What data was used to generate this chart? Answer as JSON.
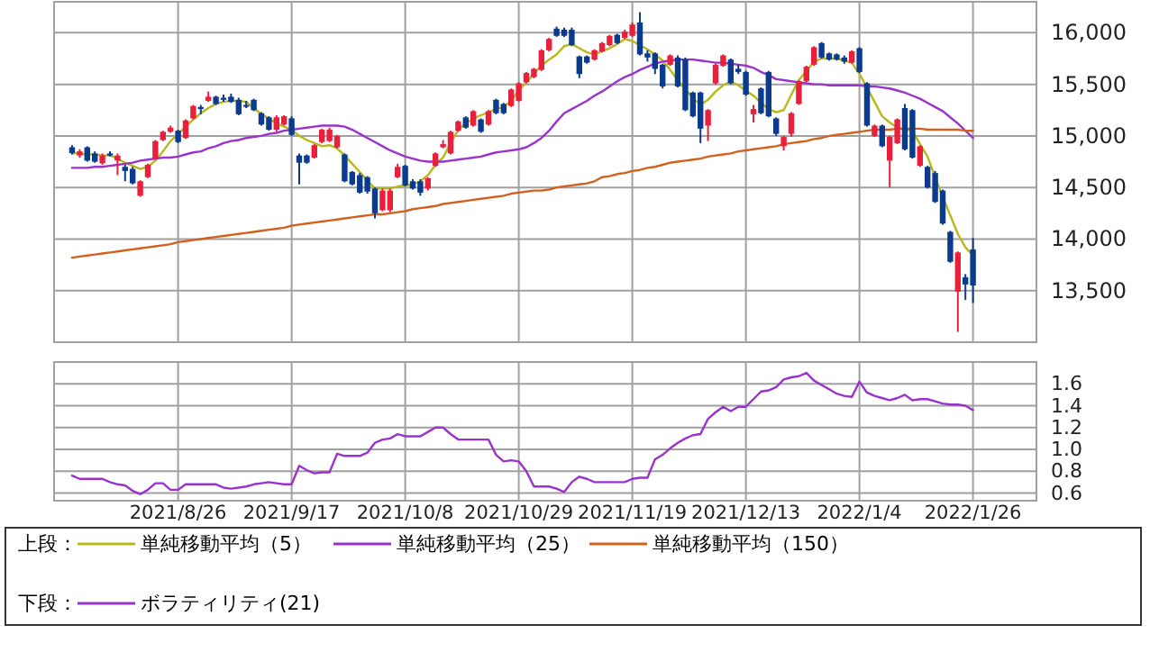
{
  "chart_data": [
    {
      "type": "candlestick",
      "legend_title": "上段：",
      "legend": "bottom",
      "grid": true,
      "tick_labels": "y",
      "categories": [
        null,
        null,
        null,
        null,
        null,
        null,
        null,
        null,
        null,
        null,
        null,
        null,
        null,
        null,
        "2021/8/26",
        null,
        null,
        null,
        null,
        null,
        null,
        null,
        null,
        null,
        null,
        null,
        null,
        null,
        null,
        "2021/9/17",
        null,
        null,
        null,
        null,
        null,
        null,
        null,
        null,
        null,
        null,
        null,
        null,
        null,
        null,
        "2021/10/8",
        null,
        null,
        null,
        null,
        null,
        null,
        null,
        null,
        null,
        null,
        null,
        null,
        null,
        null,
        "2021/10/29",
        null,
        null,
        null,
        null,
        null,
        null,
        null,
        null,
        null,
        null,
        null,
        null,
        null,
        null,
        "2021/11/19",
        null,
        null,
        null,
        null,
        null,
        null,
        null,
        null,
        null,
        null,
        null,
        null,
        null,
        null,
        "2021/12/13",
        null,
        null,
        null,
        null,
        null,
        null,
        null,
        null,
        null,
        null,
        null,
        null,
        null,
        null,
        "2022/1/4",
        null,
        null,
        null,
        null,
        null,
        null,
        null,
        null,
        null,
        null,
        null,
        null,
        null,
        null,
        "2022/1/26"
      ],
      "ohlc": [
        [
          14890,
          14910,
          14820,
          14833
        ],
        [
          14810,
          14870,
          14790,
          14850
        ],
        [
          14890,
          14900,
          14750,
          14760
        ],
        [
          14830,
          14850,
          14740,
          14750
        ],
        [
          14735,
          14830,
          14720,
          14810
        ],
        [
          14830,
          14850,
          14800,
          14810
        ],
        [
          14760,
          14830,
          14620,
          14810
        ],
        [
          14700,
          14720,
          14560,
          14660
        ],
        [
          14680,
          14700,
          14530,
          14540
        ],
        [
          14420,
          14570,
          14410,
          14560
        ],
        [
          14600,
          14730,
          14590,
          14720
        ],
        [
          14780,
          14960,
          14770,
          14950
        ],
        [
          14960,
          15050,
          14950,
          15040
        ],
        [
          15040,
          15100,
          15030,
          15080
        ],
        [
          15050,
          15060,
          14930,
          14940
        ],
        [
          14980,
          15160,
          14970,
          15150
        ],
        [
          15170,
          15300,
          15160,
          15290
        ],
        [
          15280,
          15300,
          15210,
          15260
        ],
        [
          15340,
          15430,
          15330,
          15380
        ],
        [
          15380,
          15390,
          15300,
          15310
        ],
        [
          15370,
          15400,
          15330,
          15350
        ],
        [
          15380,
          15410,
          15320,
          15330
        ],
        [
          15350,
          15370,
          15200,
          15210
        ],
        [
          15300,
          15340,
          15270,
          15290
        ],
        [
          15350,
          15360,
          15240,
          15250
        ],
        [
          15220,
          15230,
          15100,
          15110
        ],
        [
          15180,
          15190,
          15050,
          15060
        ],
        [
          15060,
          15200,
          15040,
          15180
        ],
        [
          15110,
          15200,
          15100,
          15190
        ],
        [
          15170,
          15190,
          15000,
          15010
        ],
        [
          14810,
          14830,
          14530,
          14740
        ],
        [
          14810,
          14820,
          14730,
          14740
        ],
        [
          14790,
          14920,
          14780,
          14910
        ],
        [
          14940,
          15070,
          14930,
          15060
        ],
        [
          14950,
          15080,
          14940,
          15060
        ],
        [
          14890,
          15010,
          14880,
          15000
        ],
        [
          14820,
          14830,
          14550,
          14560
        ],
        [
          14650,
          14660,
          14520,
          14530
        ],
        [
          14620,
          14640,
          14440,
          14450
        ],
        [
          14600,
          14610,
          14440,
          14460
        ],
        [
          14490,
          14500,
          14200,
          14250
        ],
        [
          14280,
          14490,
          14270,
          14470
        ],
        [
          14280,
          14490,
          14260,
          14470
        ],
        [
          14600,
          14730,
          14590,
          14700
        ],
        [
          14710,
          14720,
          14510,
          14520
        ],
        [
          14560,
          14580,
          14480,
          14490
        ],
        [
          14560,
          14580,
          14420,
          14450
        ],
        [
          14490,
          14600,
          14470,
          14590
        ],
        [
          14710,
          14840,
          14700,
          14830
        ],
        [
          14890,
          14960,
          14880,
          14920
        ],
        [
          14830,
          15050,
          14820,
          15040
        ],
        [
          15050,
          15150,
          15040,
          15140
        ],
        [
          15180,
          15190,
          15070,
          15080
        ],
        [
          15100,
          15250,
          15090,
          15240
        ],
        [
          15160,
          15170,
          15030,
          15040
        ],
        [
          15110,
          15250,
          15100,
          15240
        ],
        [
          15350,
          15360,
          15210,
          15220
        ],
        [
          15310,
          15320,
          15210,
          15220
        ],
        [
          15290,
          15460,
          15280,
          15450
        ],
        [
          15340,
          15520,
          15330,
          15510
        ],
        [
          15520,
          15620,
          15510,
          15610
        ],
        [
          15570,
          15660,
          15560,
          15650
        ],
        [
          15640,
          15840,
          15630,
          15830
        ],
        [
          15830,
          15950,
          15820,
          15940
        ],
        [
          16040,
          16060,
          15960,
          15970
        ],
        [
          16030,
          16050,
          15960,
          15970
        ],
        [
          16030,
          16050,
          15870,
          15880
        ],
        [
          15770,
          15780,
          15560,
          15600
        ],
        [
          15770,
          15780,
          15700,
          15710
        ],
        [
          15740,
          15840,
          15730,
          15830
        ],
        [
          15820,
          15910,
          15810,
          15900
        ],
        [
          15880,
          15980,
          15870,
          15970
        ],
        [
          15980,
          15990,
          15890,
          15900
        ],
        [
          15950,
          16030,
          15940,
          16010
        ],
        [
          15970,
          16100,
          15960,
          16080
        ],
        [
          16100,
          16200,
          15780,
          15790
        ],
        [
          15800,
          15830,
          15720,
          15760
        ],
        [
          15800,
          15810,
          15600,
          15650
        ],
        [
          15690,
          15700,
          15460,
          15480
        ],
        [
          15690,
          15790,
          15680,
          15780
        ],
        [
          15760,
          15780,
          15470,
          15480
        ],
        [
          15740,
          15760,
          15240,
          15250
        ],
        [
          15420,
          15430,
          15180,
          15190
        ],
        [
          15420,
          15430,
          14930,
          15070
        ],
        [
          15100,
          15260,
          14950,
          15250
        ],
        [
          15510,
          15700,
          15500,
          15690
        ],
        [
          15680,
          15790,
          15670,
          15780
        ],
        [
          15740,
          15750,
          15500,
          15510
        ],
        [
          15650,
          15690,
          15600,
          15620
        ],
        [
          15620,
          15630,
          15390,
          15400
        ],
        [
          15210,
          15300,
          15130,
          15260
        ],
        [
          15460,
          15470,
          15210,
          15220
        ],
        [
          15620,
          15630,
          15180,
          15190
        ],
        [
          15170,
          15180,
          15000,
          15020
        ],
        [
          14900,
          15000,
          14860,
          14990
        ],
        [
          15020,
          15230,
          14990,
          15220
        ],
        [
          15310,
          15540,
          15300,
          15530
        ],
        [
          15530,
          15680,
          15520,
          15670
        ],
        [
          15690,
          15870,
          15680,
          15860
        ],
        [
          15900,
          15910,
          15750,
          15760
        ],
        [
          15800,
          15810,
          15730,
          15740
        ],
        [
          15790,
          15800,
          15730,
          15740
        ],
        [
          15760,
          15780,
          15700,
          15720
        ],
        [
          15710,
          15830,
          15700,
          15820
        ],
        [
          15850,
          15860,
          15610,
          15620
        ],
        [
          15510,
          15520,
          15090,
          15100
        ],
        [
          15000,
          15110,
          14990,
          15100
        ],
        [
          15100,
          15110,
          14890,
          14900
        ],
        [
          14760,
          15000,
          14500,
          14990
        ],
        [
          14930,
          15170,
          14920,
          15160
        ],
        [
          15270,
          15310,
          14860,
          14870
        ],
        [
          15250,
          15260,
          14780,
          14790
        ],
        [
          14710,
          14910,
          14700,
          14900
        ],
        [
          14700,
          14710,
          14490,
          14500
        ],
        [
          14640,
          14660,
          14350,
          14360
        ],
        [
          14470,
          14480,
          14140,
          14150
        ],
        [
          14070,
          14080,
          13770,
          13780
        ],
        [
          13490,
          13880,
          13100,
          13870
        ],
        [
          13630,
          13660,
          13410,
          13560
        ],
        [
          13900,
          14010,
          13380,
          13550
        ]
      ],
      "series": [
        {
          "type": "line",
          "name": "単純移動平均（5）",
          "color": "#b8b81c",
          "values": [
            14830,
            14830,
            14820,
            14820,
            14810,
            14810,
            14780,
            14740,
            14710,
            14680,
            14700,
            14760,
            14850,
            14950,
            15020,
            15090,
            15160,
            15220,
            15270,
            15310,
            15330,
            15340,
            15340,
            15330,
            15270,
            15210,
            15170,
            15120,
            15090,
            15060,
            15000,
            14960,
            14930,
            14900,
            14910,
            14880,
            14810,
            14730,
            14650,
            14570,
            14490,
            14490,
            14490,
            14510,
            14520,
            14530,
            14560,
            14620,
            14720,
            14790,
            14930,
            15060,
            15120,
            15170,
            15200,
            15230,
            15260,
            15280,
            15340,
            15440,
            15520,
            15600,
            15680,
            15740,
            15790,
            15870,
            15890,
            15850,
            15810,
            15790,
            15820,
            15850,
            15890,
            15940,
            15920,
            15880,
            15840,
            15790,
            15730,
            15640,
            15540,
            15450,
            15370,
            15300,
            15350,
            15430,
            15490,
            15530,
            15490,
            15440,
            15390,
            15320,
            15260,
            15230,
            15250,
            15400,
            15540,
            15630,
            15720,
            15750,
            15750,
            15750,
            15730,
            15710,
            15600,
            15470,
            15330,
            15190,
            15130,
            15080,
            15060,
            15050,
            14920,
            14800,
            14600,
            14410,
            14230,
            14050,
            13920,
            13840
          ]
        },
        {
          "type": "line",
          "name": "単純移動平均（25）",
          "color": "#9933cc",
          "values": [
            14690,
            14690,
            14690,
            14700,
            14700,
            14710,
            14720,
            14730,
            14740,
            14760,
            14770,
            14780,
            14790,
            14790,
            14800,
            14820,
            14840,
            14850,
            14880,
            14900,
            14930,
            14950,
            14960,
            14980,
            14990,
            15000,
            15020,
            15030,
            15050,
            15060,
            15070,
            15080,
            15090,
            15100,
            15100,
            15100,
            15090,
            15060,
            15020,
            14980,
            14940,
            14900,
            14860,
            14830,
            14800,
            14780,
            14760,
            14750,
            14750,
            14750,
            14760,
            14770,
            14780,
            14790,
            14800,
            14820,
            14840,
            14850,
            14860,
            14870,
            14890,
            14930,
            14980,
            15050,
            15140,
            15220,
            15260,
            15300,
            15340,
            15390,
            15430,
            15480,
            15530,
            15570,
            15600,
            15640,
            15670,
            15700,
            15720,
            15730,
            15740,
            15740,
            15740,
            15730,
            15720,
            15710,
            15710,
            15700,
            15690,
            15680,
            15660,
            15620,
            15590,
            15550,
            15540,
            15530,
            15520,
            15510,
            15500,
            15500,
            15490,
            15490,
            15490,
            15490,
            15490,
            15480,
            15480,
            15470,
            15460,
            15440,
            15420,
            15390,
            15360,
            15320,
            15280,
            15240,
            15180,
            15120,
            15050,
            14980
          ]
        },
        {
          "type": "line",
          "name": "単純移動平均（150）",
          "color": "#d2601e",
          "values": [
            13820,
            13830,
            13840,
            13850,
            13860,
            13870,
            13880,
            13890,
            13900,
            13910,
            13920,
            13930,
            13940,
            13950,
            13970,
            13980,
            13990,
            14000,
            14010,
            14020,
            14030,
            14040,
            14050,
            14060,
            14070,
            14080,
            14090,
            14100,
            14110,
            14130,
            14140,
            14150,
            14160,
            14170,
            14180,
            14190,
            14200,
            14210,
            14220,
            14230,
            14240,
            14240,
            14250,
            14260,
            14270,
            14290,
            14300,
            14310,
            14320,
            14340,
            14350,
            14360,
            14370,
            14380,
            14390,
            14400,
            14410,
            14420,
            14440,
            14450,
            14460,
            14470,
            14470,
            14480,
            14500,
            14510,
            14520,
            14530,
            14540,
            14560,
            14600,
            14610,
            14630,
            14640,
            14660,
            14670,
            14690,
            14700,
            14720,
            14740,
            14750,
            14760,
            14770,
            14780,
            14800,
            14810,
            14820,
            14830,
            14850,
            14860,
            14870,
            14880,
            14890,
            14900,
            14920,
            14930,
            14940,
            14950,
            14970,
            14980,
            15000,
            15010,
            15020,
            15030,
            15040,
            15050,
            15060,
            15060,
            15060,
            15070,
            15070,
            15070,
            15070,
            15060,
            15060,
            15060,
            15060,
            15060,
            15050,
            15050
          ]
        }
      ],
      "ylim": [
        13000,
        16300
      ],
      "yticks": [
        {
          "value": 13500,
          "label": "13,500"
        },
        {
          "value": 14000,
          "label": "14,000"
        },
        {
          "value": 14500,
          "label": "14,500"
        },
        {
          "value": 15000,
          "label": "15,000"
        },
        {
          "value": 15500,
          "label": "15,500"
        },
        {
          "value": 16000,
          "label": "16,000"
        }
      ]
    },
    {
      "type": "line",
      "legend_title": "下段：",
      "legend": "bottom",
      "grid": true,
      "categories": [
        null,
        null,
        null,
        null,
        null,
        null,
        null,
        null,
        null,
        null,
        null,
        null,
        null,
        null,
        "2021/8/26",
        null,
        null,
        null,
        null,
        null,
        null,
        null,
        null,
        null,
        null,
        null,
        null,
        null,
        null,
        "2021/9/17",
        null,
        null,
        null,
        null,
        null,
        null,
        null,
        null,
        null,
        null,
        null,
        null,
        null,
        null,
        "2021/10/8",
        null,
        null,
        null,
        null,
        null,
        null,
        null,
        null,
        null,
        null,
        null,
        null,
        null,
        null,
        "2021/10/29",
        null,
        null,
        null,
        null,
        null,
        null,
        null,
        null,
        null,
        null,
        null,
        null,
        null,
        null,
        "2021/11/19",
        null,
        null,
        null,
        null,
        null,
        null,
        null,
        null,
        null,
        null,
        null,
        null,
        null,
        null,
        "2021/12/13",
        null,
        null,
        null,
        null,
        null,
        null,
        null,
        null,
        null,
        null,
        null,
        null,
        null,
        null,
        "2022/1/4",
        null,
        null,
        null,
        null,
        null,
        null,
        null,
        null,
        null,
        null,
        null,
        null,
        null,
        null,
        "2022/1/26"
      ],
      "series": [
        {
          "name": "ボラティリティ(21)",
          "color": "#9933cc",
          "values": [
            0.76,
            0.73,
            0.73,
            0.73,
            0.73,
            0.7,
            0.68,
            0.67,
            0.62,
            0.59,
            0.63,
            0.69,
            0.69,
            0.63,
            0.63,
            0.68,
            0.68,
            0.68,
            0.68,
            0.68,
            0.65,
            0.64,
            0.65,
            0.66,
            0.68,
            0.69,
            0.7,
            0.69,
            0.68,
            0.68,
            0.85,
            0.81,
            0.78,
            0.79,
            0.79,
            0.96,
            0.94,
            0.94,
            0.94,
            0.97,
            1.06,
            1.09,
            1.1,
            1.14,
            1.12,
            1.12,
            1.12,
            1.16,
            1.2,
            1.2,
            1.14,
            1.09,
            1.09,
            1.09,
            1.09,
            1.09,
            0.95,
            0.89,
            0.9,
            0.89,
            0.8,
            0.66,
            0.66,
            0.66,
            0.64,
            0.61,
            0.7,
            0.75,
            0.73,
            0.7,
            0.7,
            0.7,
            0.7,
            0.7,
            0.73,
            0.74,
            0.74,
            0.91,
            0.95,
            1.01,
            1.06,
            1.1,
            1.13,
            1.14,
            1.28,
            1.34,
            1.39,
            1.35,
            1.39,
            1.39,
            1.46,
            1.53,
            1.54,
            1.57,
            1.64,
            1.66,
            1.67,
            1.7,
            1.63,
            1.59,
            1.55,
            1.51,
            1.49,
            1.48,
            1.62,
            1.52,
            1.49,
            1.47,
            1.45,
            1.47,
            1.5,
            1.45,
            1.46,
            1.46,
            1.44,
            1.42,
            1.41,
            1.41,
            1.4,
            1.36
          ]
        }
      ],
      "ylim": [
        0.53,
        1.8
      ],
      "yticks": [
        0.6,
        0.8,
        {
          "value": 1,
          "label": "1.0"
        },
        1.2,
        1.4,
        1.6
      ]
    }
  ]
}
